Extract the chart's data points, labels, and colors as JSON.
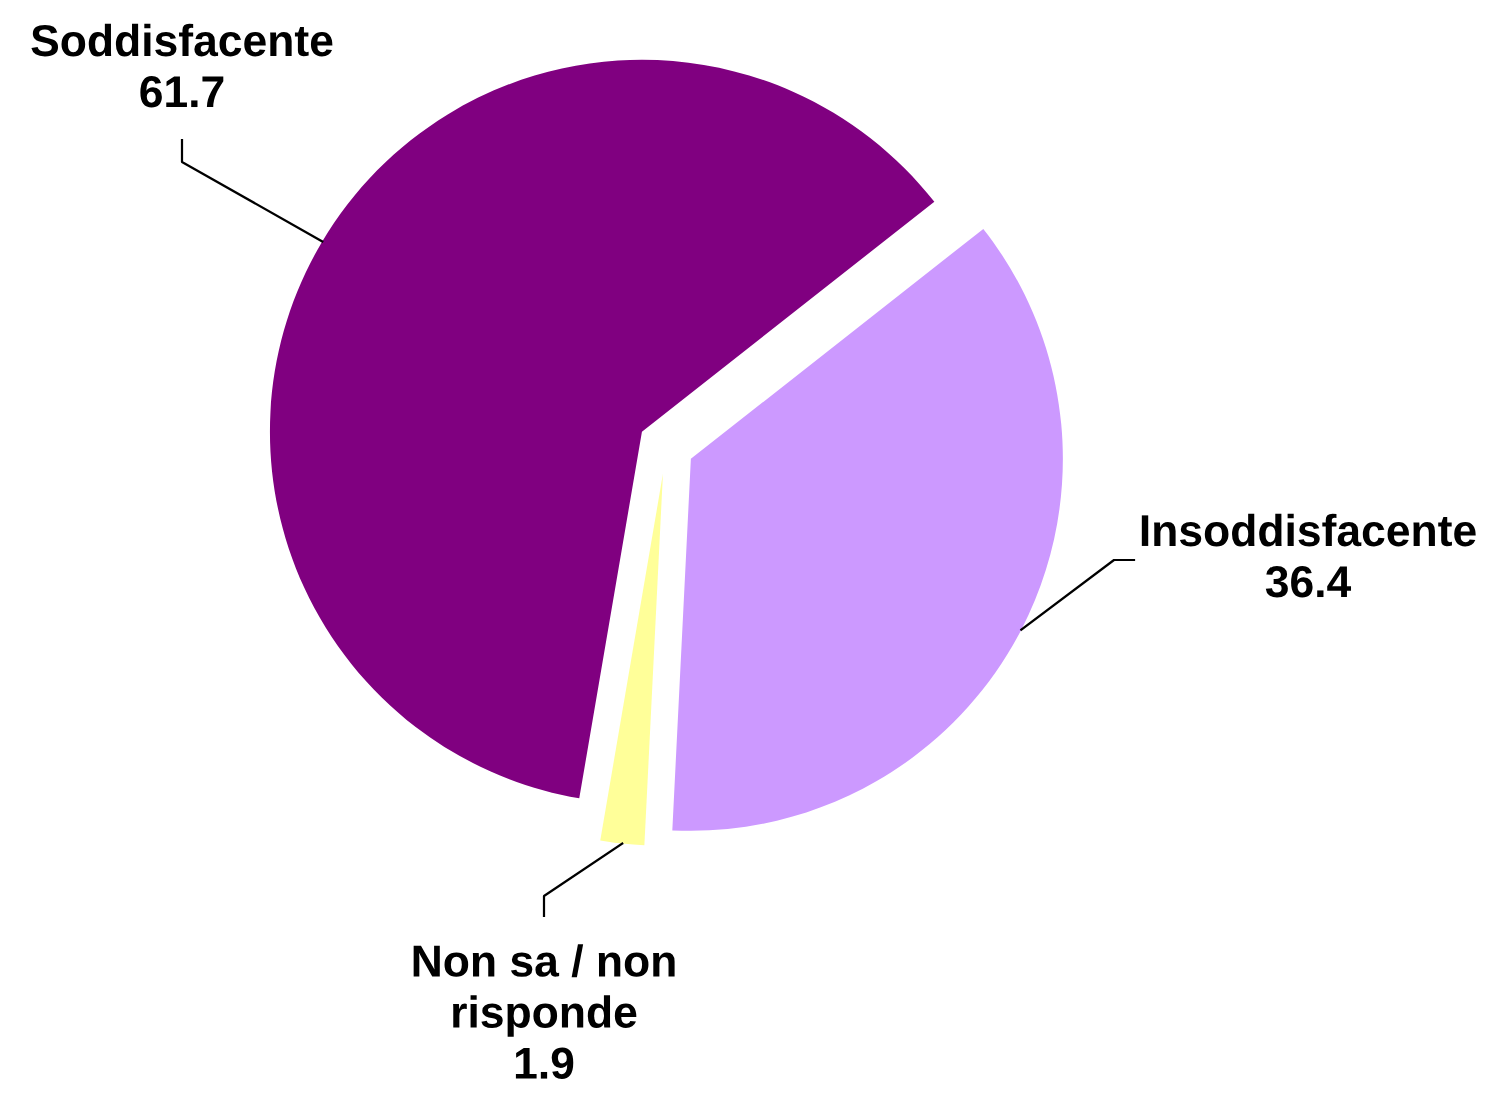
{
  "chart_data": {
    "type": "pie",
    "categories": [
      "Soddisfacente",
      "Insoddisfacente",
      "Non sa / non\nrisponde"
    ],
    "values": [
      61.7,
      36.4,
      1.9
    ],
    "colors": [
      "#800080",
      "#cc99ff",
      "#ffff99"
    ],
    "data_labels": true
  }
}
